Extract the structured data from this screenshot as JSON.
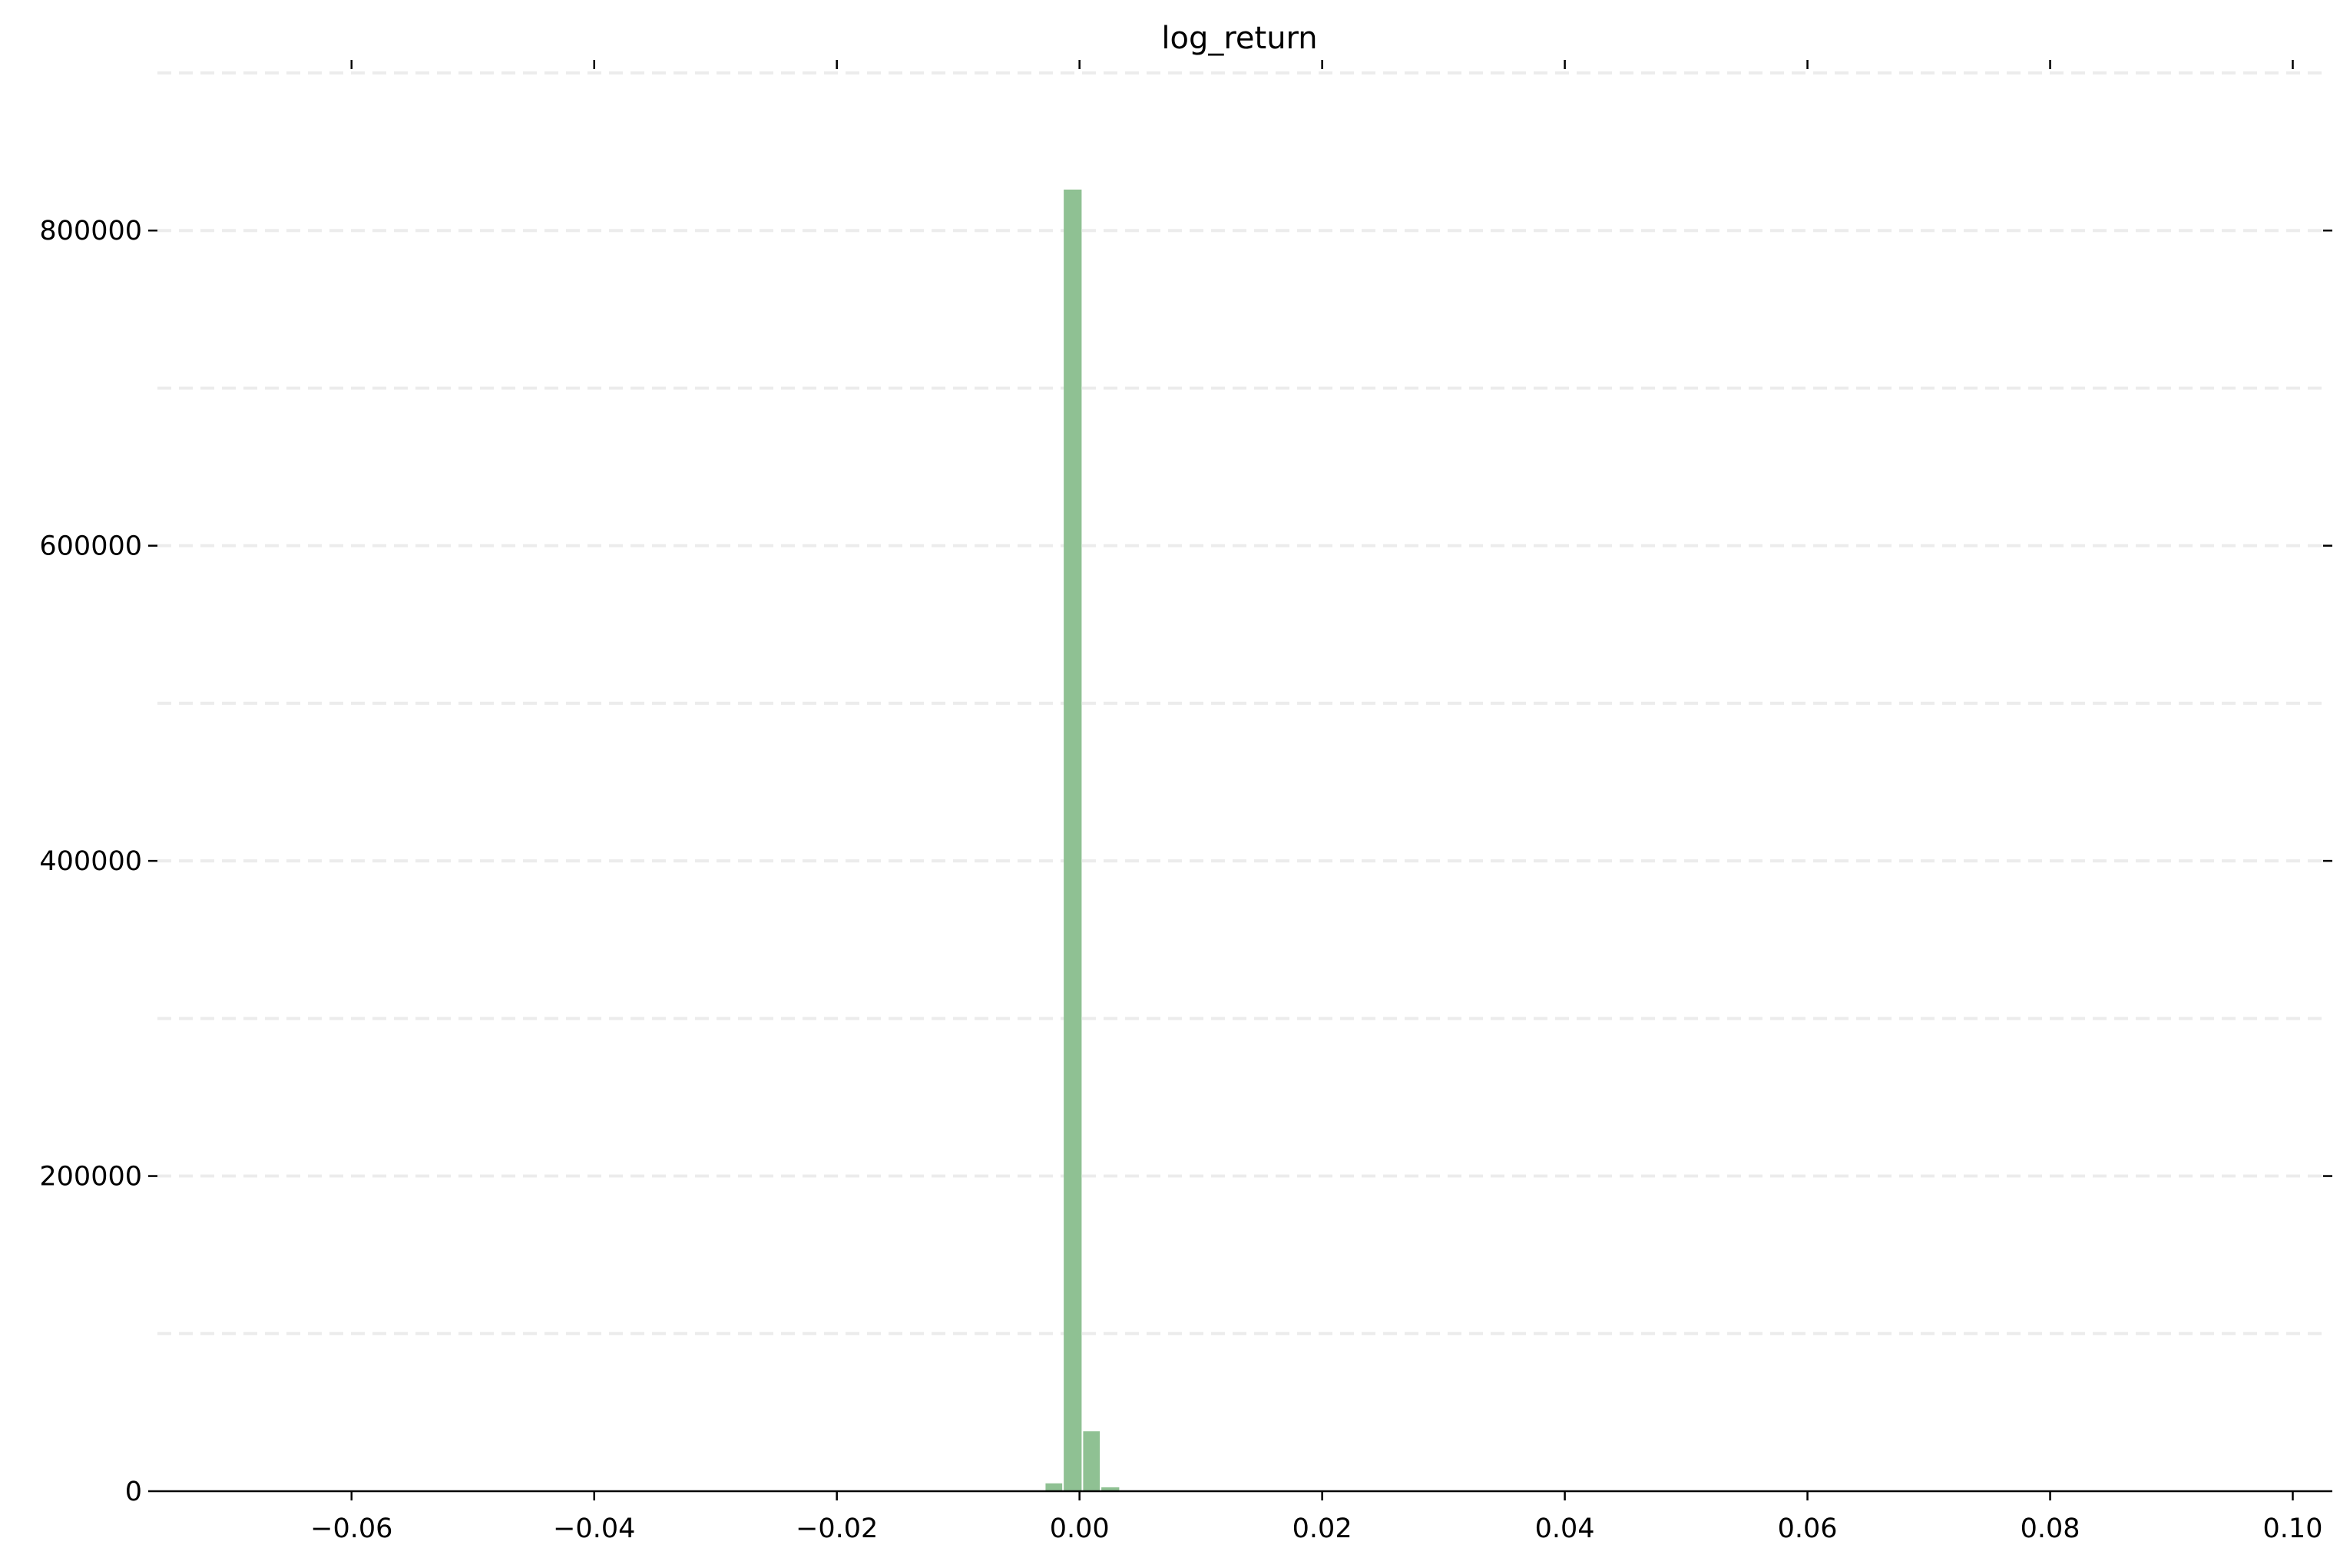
{
  "chart_data": {
    "type": "bar",
    "title": "log_return",
    "xlabel": "",
    "ylabel": "",
    "xlim": [
      -0.076,
      0.1025
    ],
    "ylim": [
      0,
      900000
    ],
    "x_ticks": [
      -0.06,
      -0.04,
      -0.02,
      0.0,
      0.02,
      0.04,
      0.06,
      0.08,
      0.1
    ],
    "x_tick_labels": [
      "−0.06",
      "−0.04",
      "−0.02",
      "0.00",
      "0.02",
      "0.04",
      "0.06",
      "0.08",
      "0.10"
    ],
    "y_ticks": [
      0,
      200000,
      400000,
      600000,
      800000
    ],
    "y_tick_labels": [
      "0",
      "200000",
      "400000",
      "600000",
      "800000"
    ],
    "grid": true,
    "bar_color": "#8fc193",
    "bins": [
      {
        "x0": -0.0028,
        "x1": -0.0013,
        "value": 5000
      },
      {
        "x0": -0.0013,
        "x1": 0.0003,
        "value": 826000
      },
      {
        "x0": 0.0003,
        "x1": 0.0018,
        "value": 38000
      },
      {
        "x0": 0.0018,
        "x1": 0.0034,
        "value": 2500
      }
    ]
  }
}
